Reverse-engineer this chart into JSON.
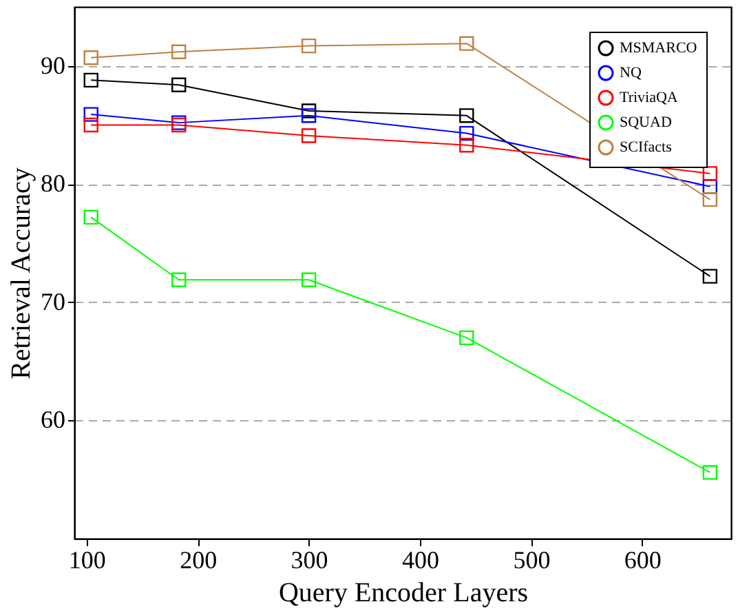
{
  "chart_data": {
    "type": "line",
    "xlabel": "Query Encoder Layers",
    "ylabel": "Retrieval Accuracy",
    "x": [
      104,
      183,
      300,
      442,
      661
    ],
    "series": [
      {
        "name": "MSMARCO",
        "color": "#000000",
        "values": [
          88.8,
          88.4,
          86.2,
          85.8,
          72.2
        ]
      },
      {
        "name": "NQ",
        "color": "#0000ff",
        "values": [
          85.9,
          85.2,
          85.8,
          84.3,
          79.8
        ]
      },
      {
        "name": "TriviaQA",
        "color": "#ff0000",
        "values": [
          85.0,
          85.0,
          84.1,
          83.3,
          80.9
        ]
      },
      {
        "name": "SQUAD",
        "color": "#00ff00",
        "values": [
          77.2,
          71.9,
          71.9,
          67.0,
          55.6
        ]
      },
      {
        "name": "SCIfacts",
        "color": "#bf8040",
        "values": [
          90.7,
          91.2,
          91.7,
          91.9,
          78.7
        ]
      }
    ],
    "xlim": [
      89,
      680
    ],
    "xticks": [
      100,
      200,
      300,
      400,
      500,
      600
    ],
    "ylim": [
      50,
      95
    ],
    "yticks": [
      60,
      70,
      80,
      90
    ],
    "grid": "y",
    "legend": "top right",
    "marker": "square",
    "line_style": "solid"
  }
}
